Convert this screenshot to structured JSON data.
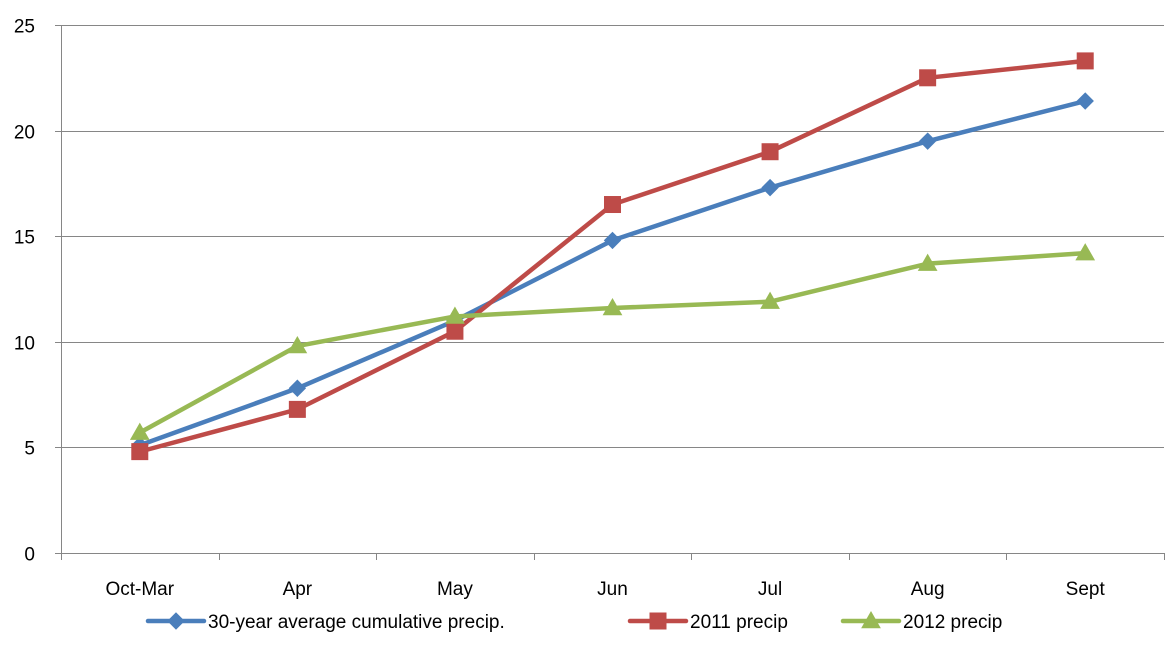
{
  "chart_data": {
    "type": "line",
    "title": "",
    "xlabel": "",
    "ylabel": "",
    "categories": [
      "Oct-Mar",
      "Apr",
      "May",
      "Jun",
      "Jul",
      "Aug",
      "Sept"
    ],
    "ylim": [
      0,
      25
    ],
    "yticks": [
      0,
      5,
      10,
      15,
      20,
      25
    ],
    "grid": true,
    "legend_position": "bottom",
    "series": [
      {
        "name": "30-year average cumulative precip.",
        "color": "#4a7ebb",
        "marker": "diamond",
        "values": [
          5.1,
          7.8,
          11.0,
          14.8,
          17.3,
          19.5,
          21.4
        ]
      },
      {
        "name": "2011 precip",
        "color": "#be4b48",
        "marker": "square",
        "values": [
          4.8,
          6.8,
          10.5,
          16.5,
          19.0,
          22.5,
          23.3
        ]
      },
      {
        "name": "2012 precip",
        "color": "#98b954",
        "marker": "triangle",
        "values": [
          5.7,
          9.8,
          11.2,
          11.6,
          11.9,
          13.7,
          14.2
        ]
      }
    ]
  }
}
